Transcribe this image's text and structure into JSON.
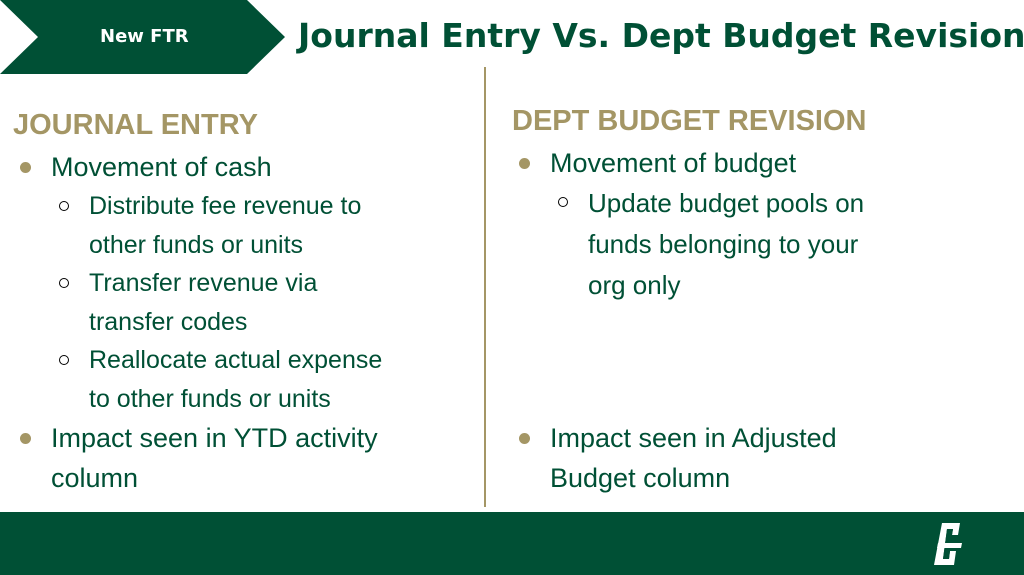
{
  "banner": {
    "label": "New FTR"
  },
  "title": "Journal Entry Vs. Dept Budget Revision",
  "left": {
    "heading": "JOURNAL ENTRY",
    "point1": "Movement of cash",
    "sub1": [
      "Distribute fee revenue to",
      "other funds or units"
    ],
    "sub2": [
      "Transfer revenue via",
      "transfer codes"
    ],
    "sub3": [
      "Reallocate actual expense",
      "to other funds or units"
    ],
    "point2": [
      "Impact seen in YTD activity",
      "column"
    ]
  },
  "right": {
    "heading": "DEPT BUDGET REVISION",
    "point1": "Movement of budget",
    "sub1": [
      "Update budget pools on",
      "funds belonging to your",
      "org only"
    ],
    "point2": [
      "Impact seen in Adjusted",
      "Budget column"
    ]
  },
  "colors": {
    "green": "#005035",
    "gold": "#A49665"
  },
  "icons": {
    "logo": "charlotte-c-logo-icon"
  }
}
